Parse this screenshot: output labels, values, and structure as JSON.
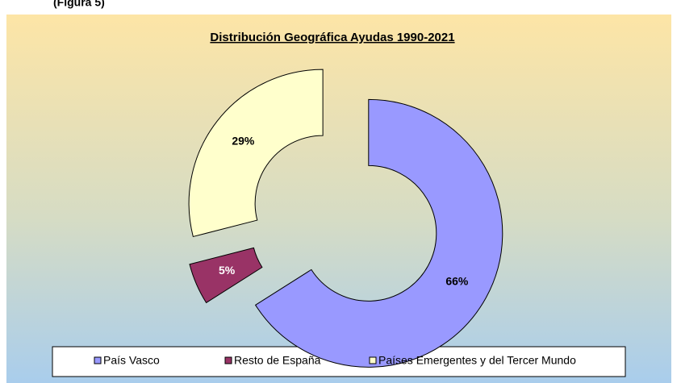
{
  "caption": "(Figura 5)",
  "chart_data": {
    "type": "pie",
    "donut": true,
    "title": "Distribución Geográfica Ayudas 1990-2021",
    "categories": [
      "País Vasco",
      "Resto de España",
      "Países Emergentes y del Tercer Mundo"
    ],
    "values": [
      66,
      5,
      29
    ],
    "value_labels": [
      "66%",
      "5%",
      "29%"
    ],
    "colors": [
      "#9999ff",
      "#993366",
      "#ffffcc"
    ],
    "legend": "bottom"
  }
}
